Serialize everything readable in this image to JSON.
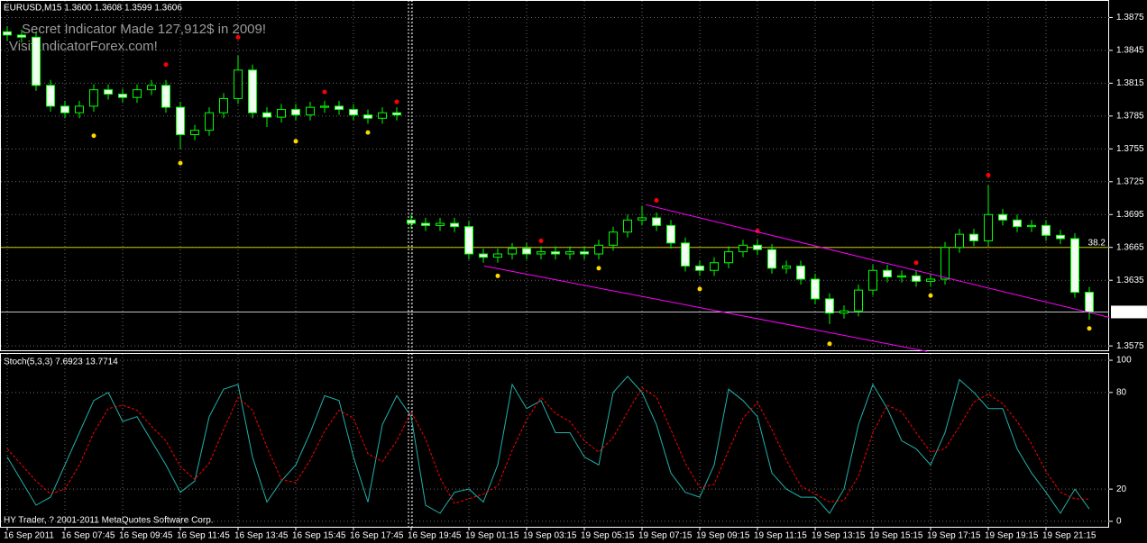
{
  "chart_data": [
    {
      "type": "candlestick",
      "title": "EURUSD,M15  1.3600 1.3608 1.3599 1.3606",
      "annotations": [
        "Secret Indicator Made 127,912$ in 2009!",
        "Visit IndicatorForex.com!"
      ],
      "candles": {
        "open": [
          1.3862,
          1.3859,
          1.3857,
          1.3813,
          1.3794,
          1.3788,
          1.3794,
          1.3809,
          1.3805,
          1.3802,
          1.3809,
          1.3813,
          1.3793,
          1.3768,
          1.3772,
          1.3788,
          1.3801,
          1.3827,
          1.3788,
          1.3784,
          1.3791,
          1.3786,
          1.3793,
          1.3794,
          1.3791,
          1.3786,
          1.3783,
          1.3788,
          1.369,
          1.3687,
          1.3685,
          1.3687,
          1.3684,
          1.3659,
          1.3656,
          1.3659,
          1.3664,
          1.3659,
          1.3661,
          1.3659,
          1.3661,
          1.3659,
          1.3667,
          1.3679,
          1.369,
          1.3692,
          1.3685,
          1.3669,
          1.3648,
          1.3644,
          1.3651,
          1.3661,
          1.3667,
          1.3663,
          1.3646,
          1.3648,
          1.3636,
          1.3618,
          1.3605,
          1.3607,
          1.3626,
          1.3644,
          1.3638,
          1.3639,
          1.3634,
          1.3636,
          1.3665,
          1.3677,
          1.3671,
          1.3695,
          1.369,
          1.3684,
          1.3685,
          1.3676,
          1.3673,
          1.3624
        ],
        "high": [
          1.3867,
          1.3864,
          1.3862,
          1.3818,
          1.3799,
          1.3799,
          1.3814,
          1.3814,
          1.381,
          1.3814,
          1.3818,
          1.3818,
          1.3798,
          1.3777,
          1.3793,
          1.3806,
          1.384,
          1.3832,
          1.3793,
          1.3796,
          1.3796,
          1.3798,
          1.3799,
          1.3799,
          1.3796,
          1.3791,
          1.3793,
          1.3793,
          1.3695,
          1.3692,
          1.3692,
          1.3692,
          1.3689,
          1.3664,
          1.3664,
          1.3669,
          1.3669,
          1.3666,
          1.3666,
          1.3666,
          1.3666,
          1.3672,
          1.3684,
          1.3695,
          1.3703,
          1.3697,
          1.369,
          1.3674,
          1.3653,
          1.3656,
          1.3666,
          1.3672,
          1.3672,
          1.3668,
          1.3653,
          1.3653,
          1.3641,
          1.3623,
          1.3612,
          1.3631,
          1.3649,
          1.3649,
          1.3644,
          1.3644,
          1.3641,
          1.367,
          1.3682,
          1.3682,
          1.3722,
          1.37,
          1.3695,
          1.369,
          1.369,
          1.3681,
          1.3678,
          1.3629
        ],
        "low": [
          1.3854,
          1.3852,
          1.3808,
          1.3789,
          1.3783,
          1.3783,
          1.3789,
          1.38,
          1.3797,
          1.3797,
          1.3804,
          1.3788,
          1.3755,
          1.3763,
          1.3767,
          1.3783,
          1.3796,
          1.3783,
          1.3775,
          1.3779,
          1.3781,
          1.3781,
          1.3788,
          1.3786,
          1.3781,
          1.3778,
          1.3778,
          1.3781,
          1.3682,
          1.368,
          1.368,
          1.3679,
          1.3654,
          1.3651,
          1.3651,
          1.3654,
          1.3654,
          1.3654,
          1.3654,
          1.3654,
          1.3654,
          1.3654,
          1.3662,
          1.3674,
          1.3685,
          1.368,
          1.3664,
          1.3643,
          1.3639,
          1.3639,
          1.3646,
          1.3656,
          1.3658,
          1.3641,
          1.3641,
          1.3631,
          1.3613,
          1.3595,
          1.36,
          1.3602,
          1.3621,
          1.3633,
          1.3633,
          1.3629,
          1.3629,
          1.3631,
          1.366,
          1.3666,
          1.3666,
          1.3685,
          1.3679,
          1.3679,
          1.3671,
          1.3668,
          1.3619,
          1.3599
        ],
        "close": [
          1.3859,
          1.3857,
          1.3813,
          1.3794,
          1.3788,
          1.3794,
          1.3809,
          1.3805,
          1.3802,
          1.3809,
          1.3813,
          1.3793,
          1.3768,
          1.3772,
          1.3788,
          1.3801,
          1.3827,
          1.3788,
          1.3784,
          1.3791,
          1.3786,
          1.3793,
          1.3794,
          1.3791,
          1.3786,
          1.3783,
          1.3788,
          1.3786,
          1.3687,
          1.3685,
          1.3687,
          1.3684,
          1.3659,
          1.3656,
          1.3659,
          1.3664,
          1.3659,
          1.3661,
          1.3659,
          1.3661,
          1.3659,
          1.3667,
          1.3679,
          1.369,
          1.3692,
          1.3685,
          1.3669,
          1.3648,
          1.3644,
          1.3651,
          1.3661,
          1.3667,
          1.3663,
          1.3646,
          1.3648,
          1.3636,
          1.3618,
          1.3605,
          1.3607,
          1.3626,
          1.3644,
          1.3638,
          1.3639,
          1.3634,
          1.3636,
          1.3665,
          1.3677,
          1.3671,
          1.3695,
          1.369,
          1.3684,
          1.3685,
          1.3676,
          1.3673,
          1.3624,
          1.3606
        ]
      },
      "up_color": "#000000",
      "down_color": "#f0fff0",
      "wick_color": "#00ff00",
      "up_fractals": {
        "color": "#ff0000",
        "x": [
          11,
          16,
          22,
          27,
          37,
          45,
          52,
          63,
          68
        ],
        "values": [
          1.3832,
          1.3857,
          1.3807,
          1.3798,
          1.3671,
          1.3708,
          1.368,
          1.3651,
          1.3731
        ]
      },
      "down_fractals": {
        "color": "#ffd700",
        "x": [
          6,
          12,
          20,
          25,
          34,
          41,
          48,
          57,
          64,
          75
        ],
        "values": [
          1.3767,
          1.3742,
          1.3762,
          1.377,
          1.3639,
          1.3646,
          1.3627,
          1.3577,
          1.3621,
          1.3591
        ]
      },
      "trendlines": [
        {
          "color": "#ff00ff",
          "x": [
            44.25,
            76.4
          ],
          "values": [
            1.3704,
            1.3601
          ]
        },
        {
          "color": "#ff00ff",
          "x": [
            33.06,
            63.75
          ],
          "values": [
            1.3648,
            1.357
          ]
        }
      ],
      "levels": [
        {
          "value": 1.3665,
          "label": "38.2",
          "color": "#c8c800"
        }
      ],
      "current_price": 1.3606,
      "current_price_color": "#c0c0c0",
      "xlim": [
        -0.5,
        76.375
      ],
      "xticks": [
        {
          "value": 0,
          "label": "16 Sep 2011"
        },
        {
          "value": 4,
          "label": "16 Sep 07:45"
        },
        {
          "value": 8,
          "label": "16 Sep 09:45"
        },
        {
          "value": 12,
          "label": "16 Sep 11:45"
        },
        {
          "value": 16,
          "label": "16 Sep 13:45"
        },
        {
          "value": 20,
          "label": "16 Sep 15:45"
        },
        {
          "value": 24,
          "label": "16 Sep 17:45"
        },
        {
          "value": 28,
          "label": "16 Sep 19:45"
        },
        {
          "value": 32,
          "label": "19 Sep 01:15"
        },
        {
          "value": 36,
          "label": "19 Sep 03:15"
        },
        {
          "value": 40,
          "label": "19 Sep 05:15"
        },
        {
          "value": 44,
          "label": "19 Sep 07:15"
        },
        {
          "value": 48,
          "label": "19 Sep 09:15"
        },
        {
          "value": 52,
          "label": "19 Sep 11:15"
        },
        {
          "value": 56,
          "label": "19 Sep 13:15"
        },
        {
          "value": 60,
          "label": "19 Sep 15:15"
        },
        {
          "value": 64,
          "label": "19 Sep 17:15"
        },
        {
          "value": 68,
          "label": "19 Sep 19:15"
        },
        {
          "value": 72,
          "label": "19 Sep 21:15"
        }
      ],
      "ylim": [
        1.3571,
        1.3891
      ],
      "yticks": [
        1.3875,
        1.3845,
        1.3815,
        1.3785,
        1.3755,
        1.3725,
        1.3695,
        1.3665,
        1.3635,
        1.3575
      ],
      "grid": true
    },
    {
      "type": "line",
      "title": "Stoch(5,3,3) 7.6923 13.7714",
      "annotation": "HY Trader, ? 2001-2011 MetaQuotes Software Corp.",
      "series": [
        {
          "color": "#20b2aa",
          "dashed": false,
          "values": [
            40,
            25,
            10,
            15,
            35,
            55,
            75,
            80,
            62,
            65,
            50,
            35,
            18,
            25,
            65,
            82,
            85,
            40,
            12,
            25,
            35,
            55,
            78,
            75,
            40,
            12,
            60,
            78,
            65,
            10,
            5,
            18,
            20,
            12,
            35,
            85,
            70,
            75,
            55,
            55,
            40,
            35,
            80,
            90,
            80,
            60,
            30,
            18,
            15,
            35,
            82,
            75,
            65,
            30,
            20,
            15,
            15,
            5,
            20,
            60,
            85,
            70,
            50,
            45,
            35,
            55,
            88,
            80,
            70,
            70,
            45,
            30,
            18,
            5,
            20,
            7.6923
          ]
        },
        {
          "color": "#ff0000",
          "dashed": true,
          "values": [
            45,
            35,
            25,
            17,
            20,
            35,
            55,
            70,
            72,
            69,
            59,
            50,
            34,
            26,
            36,
            57,
            77,
            69,
            46,
            26,
            24,
            38,
            56,
            69,
            64,
            42,
            37,
            50,
            68,
            51,
            27,
            11,
            14,
            17,
            22,
            44,
            63,
            77,
            67,
            62,
            50,
            43,
            52,
            68,
            83,
            77,
            57,
            36,
            21,
            23,
            44,
            64,
            74,
            57,
            38,
            22,
            17,
            12,
            13,
            28,
            55,
            72,
            68,
            55,
            43,
            45,
            59,
            74,
            79,
            73,
            62,
            48,
            31,
            18,
            14,
            13.7714
          ]
        }
      ],
      "ylim": [
        -3.4,
        104.5
      ],
      "yticks": [
        100,
        80,
        20,
        0
      ],
      "grid": true
    }
  ]
}
